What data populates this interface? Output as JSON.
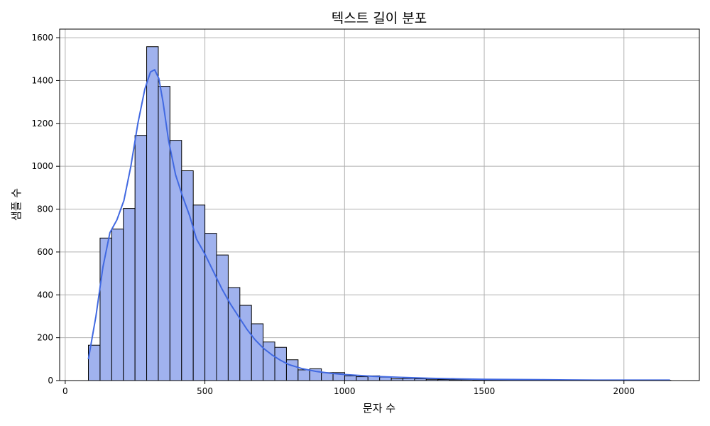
{
  "chart_data": {
    "type": "bar",
    "title": "텍스트 길이 분포",
    "xlabel": "문자 수",
    "ylabel": "샘플 수",
    "xlim": [
      -20,
      2270
    ],
    "ylim": [
      0,
      1640
    ],
    "x_ticks": [
      0,
      500,
      1000,
      1500,
      2000
    ],
    "y_ticks": [
      0,
      200,
      400,
      600,
      800,
      1000,
      1200,
      1400,
      1600
    ],
    "grid": true,
    "bar_color": "#a0b2ee",
    "bar_edge_color": "#000000",
    "kde_color": "#4169e1",
    "bins_start": 83,
    "bin_width": 41.7,
    "values": [
      165,
      665,
      707,
      803,
      1144,
      1558,
      1373,
      1121,
      979,
      819,
      687,
      586,
      434,
      351,
      265,
      180,
      155,
      97,
      50,
      55,
      37,
      37,
      22,
      18,
      22,
      16,
      8,
      10,
      8,
      6,
      5,
      4,
      4,
      3,
      2,
      2,
      2,
      1,
      1,
      1,
      1,
      1,
      1,
      1,
      1,
      1,
      1,
      1,
      1,
      1
    ],
    "kde": {
      "x": [
        83,
        110,
        135,
        160,
        185,
        210,
        235,
        260,
        285,
        305,
        320,
        335,
        350,
        370,
        395,
        420,
        445,
        470,
        500,
        530,
        560,
        590,
        620,
        650,
        680,
        710,
        740,
        770,
        800,
        850,
        900,
        950,
        1000,
        1100,
        1200,
        1300,
        1400,
        1500,
        1600,
        1700,
        1800,
        1900,
        2000,
        2100,
        2165
      ],
      "y": [
        100,
        300,
        530,
        690,
        750,
        840,
        1000,
        1200,
        1360,
        1440,
        1450,
        1410,
        1300,
        1120,
        960,
        860,
        770,
        660,
        590,
        510,
        430,
        360,
        300,
        240,
        190,
        150,
        120,
        95,
        75,
        55,
        42,
        34,
        28,
        20,
        15,
        11,
        8,
        6,
        5,
        4,
        3,
        2,
        2,
        2,
        2
      ]
    }
  }
}
